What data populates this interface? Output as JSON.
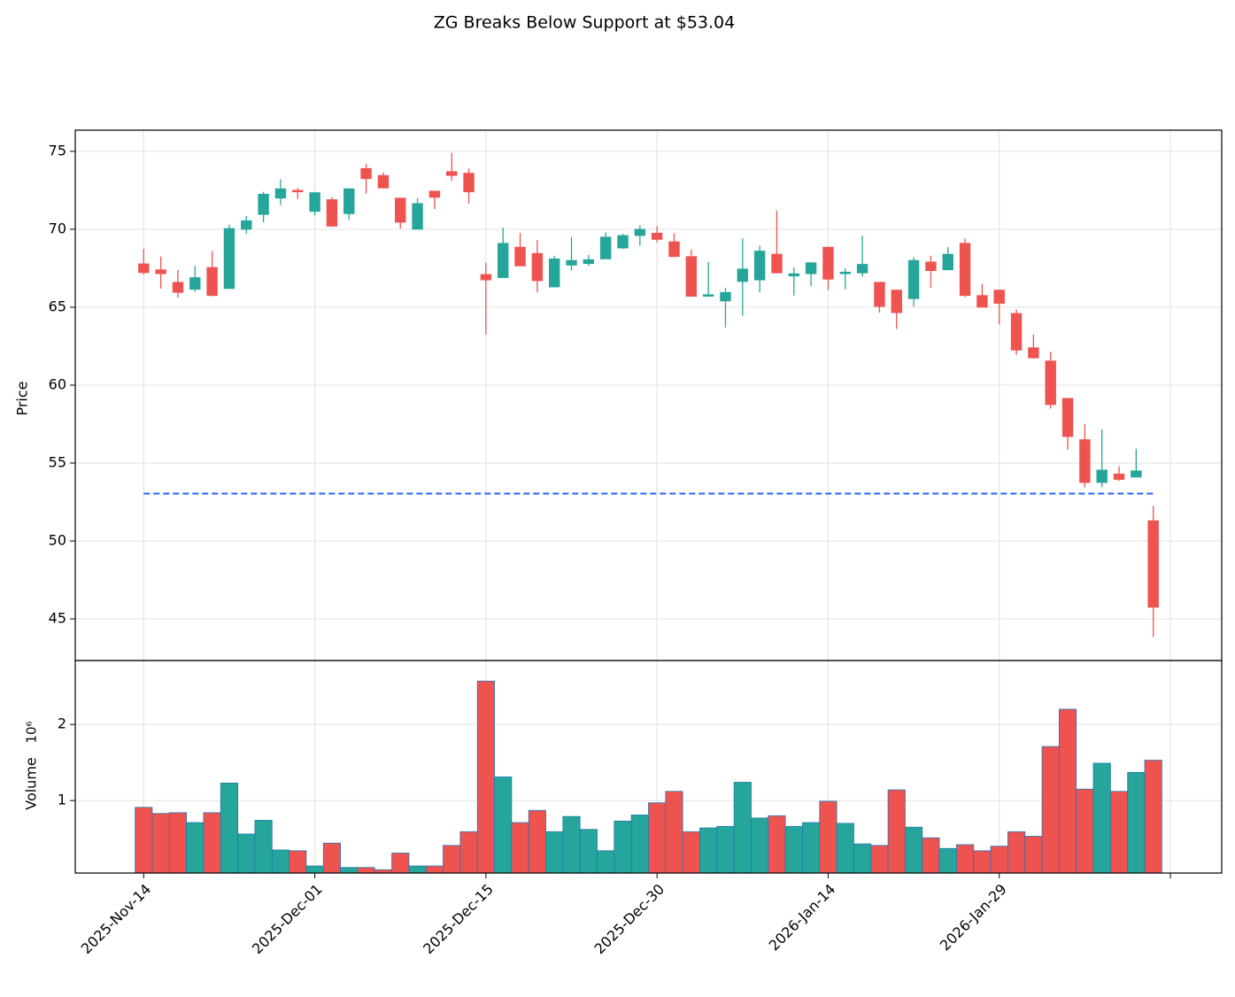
{
  "chart_data": {
    "type": "candlestick",
    "title": "ZG Breaks Below Support at $53.04",
    "categories": [
      "2025-Nov-14",
      null,
      null,
      null,
      null,
      null,
      null,
      null,
      null,
      null,
      "2025-Dec-01",
      null,
      null,
      null,
      null,
      null,
      null,
      null,
      null,
      null,
      "2025-Dec-15",
      null,
      null,
      null,
      null,
      null,
      null,
      null,
      null,
      null,
      "2025-Dec-30",
      null,
      null,
      null,
      null,
      null,
      null,
      null,
      null,
      null,
      "2026-Jan-14",
      null,
      null,
      null,
      null,
      null,
      null,
      null,
      null,
      null,
      "2026-Jan-29",
      null,
      null,
      null,
      null,
      null,
      null,
      null,
      null,
      null
    ],
    "open": [
      67.78,
      67.4,
      66.6,
      66.15,
      67.55,
      66.2,
      70.0,
      70.95,
      72.0,
      72.5,
      71.15,
      71.9,
      71.0,
      73.9,
      73.45,
      72.0,
      70.0,
      72.45,
      73.7,
      73.6,
      67.1,
      66.9,
      68.85,
      68.45,
      66.3,
      67.7,
      67.8,
      68.1,
      68.8,
      69.6,
      69.75,
      69.2,
      68.25,
      65.7,
      65.4,
      66.65,
      66.75,
      68.4,
      67.0,
      67.15,
      68.85,
      67.15,
      67.2,
      66.6,
      66.1,
      65.55,
      67.9,
      67.4,
      69.1,
      65.75,
      66.1,
      64.6,
      62.4,
      61.55,
      59.15,
      56.5,
      53.75,
      54.3,
      54.1,
      51.3
    ],
    "high": [
      68.75,
      68.25,
      67.4,
      67.65,
      68.6,
      70.3,
      70.85,
      72.4,
      73.2,
      72.65,
      72.4,
      72.05,
      72.6,
      74.2,
      73.65,
      72.0,
      72.0,
      72.45,
      74.9,
      73.9,
      67.85,
      70.1,
      69.75,
      69.3,
      68.3,
      69.5,
      68.35,
      69.8,
      69.7,
      70.25,
      70.2,
      69.75,
      68.7,
      67.9,
      66.25,
      69.4,
      68.95,
      71.2,
      67.55,
      67.9,
      68.85,
      67.5,
      69.6,
      66.6,
      66.1,
      68.2,
      68.3,
      68.85,
      69.4,
      66.5,
      66.1,
      64.85,
      63.25,
      62.15,
      59.15,
      57.5,
      57.15,
      54.8,
      55.9,
      52.25
    ],
    "low": [
      67.1,
      66.2,
      65.6,
      66.0,
      65.7,
      66.2,
      69.7,
      70.45,
      71.55,
      71.95,
      70.9,
      70.15,
      70.6,
      72.3,
      72.65,
      70.05,
      70.0,
      71.3,
      73.1,
      71.65,
      63.25,
      66.9,
      67.65,
      65.95,
      66.3,
      67.35,
      67.65,
      68.1,
      68.75,
      68.95,
      69.15,
      68.25,
      65.7,
      65.7,
      63.7,
      64.45,
      65.95,
      67.2,
      65.75,
      66.35,
      66.1,
      66.15,
      66.95,
      64.65,
      63.6,
      65.05,
      66.25,
      67.4,
      65.65,
      65.0,
      63.9,
      61.95,
      61.7,
      58.5,
      55.85,
      53.45,
      53.45,
      53.85,
      54.1,
      43.85
    ],
    "close": [
      67.22,
      67.15,
      65.95,
      66.9,
      65.75,
      70.05,
      70.55,
      72.25,
      72.6,
      72.4,
      72.35,
      70.2,
      72.6,
      73.25,
      72.65,
      70.45,
      71.65,
      72.05,
      73.45,
      72.4,
      66.75,
      69.1,
      67.65,
      66.7,
      68.1,
      68.0,
      68.05,
      69.5,
      69.6,
      70.0,
      69.35,
      68.25,
      65.7,
      65.8,
      65.95,
      67.45,
      68.6,
      67.2,
      67.15,
      67.85,
      66.8,
      67.25,
      67.75,
      65.05,
      64.65,
      68.0,
      67.35,
      68.4,
      65.75,
      65.0,
      65.25,
      62.25,
      61.75,
      58.75,
      56.7,
      53.75,
      54.55,
      53.95,
      54.5,
      45.75
    ],
    "up_color": "#26a69a",
    "down_color": "#ef5350",
    "xlim": [
      -4,
      63
    ],
    "xticks": [
      0,
      10,
      20,
      30,
      40,
      50,
      60
    ],
    "ylim": [
      42.33,
      76.36
    ],
    "yticks": [
      45,
      50,
      55,
      60,
      65,
      70,
      75
    ],
    "ylabel": "Price",
    "grid": true,
    "support": {
      "value": 53.04,
      "color": "#2962ff"
    },
    "volume": {
      "values": [
        0.91,
        0.83,
        0.84,
        0.71,
        0.84,
        1.23,
        0.56,
        0.74,
        0.35,
        0.34,
        0.14,
        0.44,
        0.12,
        0.12,
        0.09,
        0.31,
        0.14,
        0.14,
        0.41,
        0.59,
        2.57,
        1.31,
        0.71,
        0.87,
        0.59,
        0.79,
        0.62,
        0.34,
        0.73,
        0.81,
        0.97,
        1.12,
        0.59,
        0.64,
        0.66,
        1.24,
        0.77,
        0.8,
        0.66,
        0.71,
        0.99,
        0.7,
        0.43,
        0.41,
        1.14,
        0.65,
        0.51,
        0.37,
        0.42,
        0.34,
        0.4,
        0.59,
        0.53,
        1.71,
        2.2,
        1.15,
        1.49,
        1.12,
        1.37,
        1.53
      ],
      "ylim": [
        0.047,
        2.84
      ],
      "yticks": [
        1,
        2
      ],
      "ylabel": "Volume",
      "scale_label": "10⁶"
    }
  }
}
